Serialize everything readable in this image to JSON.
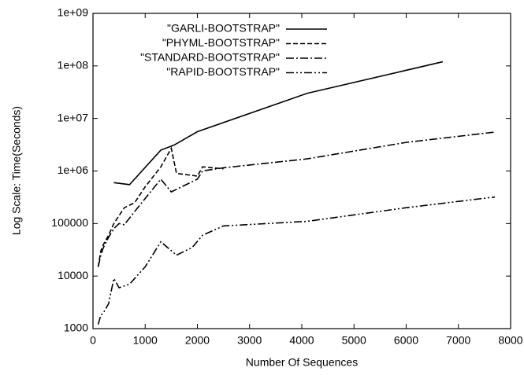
{
  "chart_data": {
    "type": "line",
    "xlabel": "Number Of Sequences",
    "ylabel": "Log Scale: Time(Seconds)",
    "log_y": true,
    "legend": "upper-left",
    "xlim": [
      0,
      8000
    ],
    "xticks": [
      0,
      1000,
      2000,
      3000,
      4000,
      5000,
      6000,
      7000,
      8000
    ],
    "ylim": [
      1000,
      1000000000
    ],
    "yticks": [
      1000,
      10000,
      100000,
      {
        "value": 1000000,
        "label": "1e+06"
      },
      {
        "value": 10000000,
        "label": "1e+07"
      },
      {
        "value": 100000000,
        "label": "1e+08"
      },
      {
        "value": 1000000000,
        "label": "1e+09"
      }
    ],
    "series": [
      {
        "name": "\"GARLI-BOOTSTRAP\"",
        "color": "#000000",
        "dash": "none",
        "x": [
          400,
          700,
          1300,
          1550,
          2000,
          4100,
          6700
        ],
        "values": [
          600000,
          550000,
          2500000,
          3100000,
          5600000,
          30000000,
          120000000
        ]
      },
      {
        "name": "\"PHYML-BOOTSTRAP\"",
        "color": "#000000",
        "dash": "6,3",
        "x": [
          100,
          150,
          200,
          300,
          400,
          600,
          800,
          1000,
          1300,
          1500,
          1600,
          2000,
          2100,
          2500
        ],
        "values": [
          15000,
          30000,
          40000,
          60000,
          100000,
          200000,
          250000,
          500000,
          1200000,
          2700000,
          900000,
          800000,
          1200000,
          1100000
        ]
      },
      {
        "name": "\"STANDARD-BOOTSTRAP\"",
        "color": "#000000",
        "dash": "10,3,2,3",
        "x": [
          100,
          150,
          200,
          300,
          400,
          500,
          600,
          800,
          1000,
          1300,
          1500,
          2000,
          2100,
          2500,
          4100,
          6000,
          7700
        ],
        "values": [
          15000,
          25000,
          35000,
          55000,
          80000,
          100000,
          95000,
          170000,
          300000,
          700000,
          400000,
          700000,
          1000000,
          1150000,
          1700000,
          3500000,
          5500000
        ]
      },
      {
        "name": "\"RAPID-BOOTSTRAP\"",
        "color": "#000000",
        "dash": "10,3,2,3,2,3",
        "x": [
          100,
          150,
          200,
          300,
          400,
          500,
          700,
          1000,
          1300,
          1600,
          1900,
          2100,
          2500,
          4100,
          6000,
          7700
        ],
        "values": [
          1200,
          1800,
          2000,
          3000,
          9000,
          6000,
          7000,
          15000,
          45000,
          25000,
          35000,
          60000,
          90000,
          110000,
          200000,
          320000
        ]
      }
    ]
  }
}
